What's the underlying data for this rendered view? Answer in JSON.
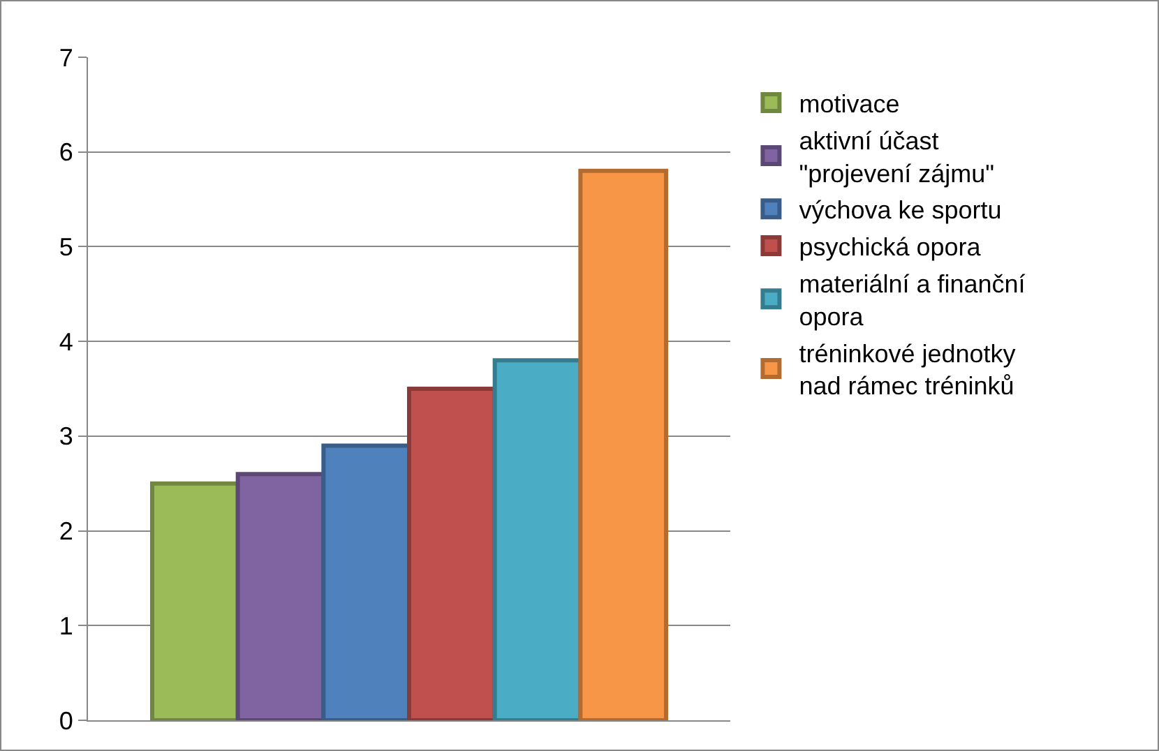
{
  "chart_data": {
    "type": "bar",
    "categories": [
      null
    ],
    "series": [
      {
        "name": "motivace",
        "color": "#9bbb59",
        "values": [
          2.5
        ]
      },
      {
        "name": "aktivní účast \"projevení zájmu\"",
        "color": "#8064a2",
        "values": [
          2.6
        ]
      },
      {
        "name": "výchova ke sportu",
        "color": "#4f81bd",
        "values": [
          2.9
        ]
      },
      {
        "name": "psychická opora",
        "color": "#c0504d",
        "values": [
          3.5
        ]
      },
      {
        "name": "materiální a finanční opora",
        "color": "#4bacc6",
        "values": [
          3.8
        ]
      },
      {
        "name": "tréninkové jednotky nad rámec tréninků",
        "color": "#f79646",
        "values": [
          5.8
        ]
      }
    ],
    "ylim": [
      0,
      7
    ],
    "yticks": [
      0,
      1,
      2,
      3,
      4,
      5,
      6,
      7
    ],
    "grid": "y",
    "legend": "right",
    "tick_labels": "y"
  }
}
